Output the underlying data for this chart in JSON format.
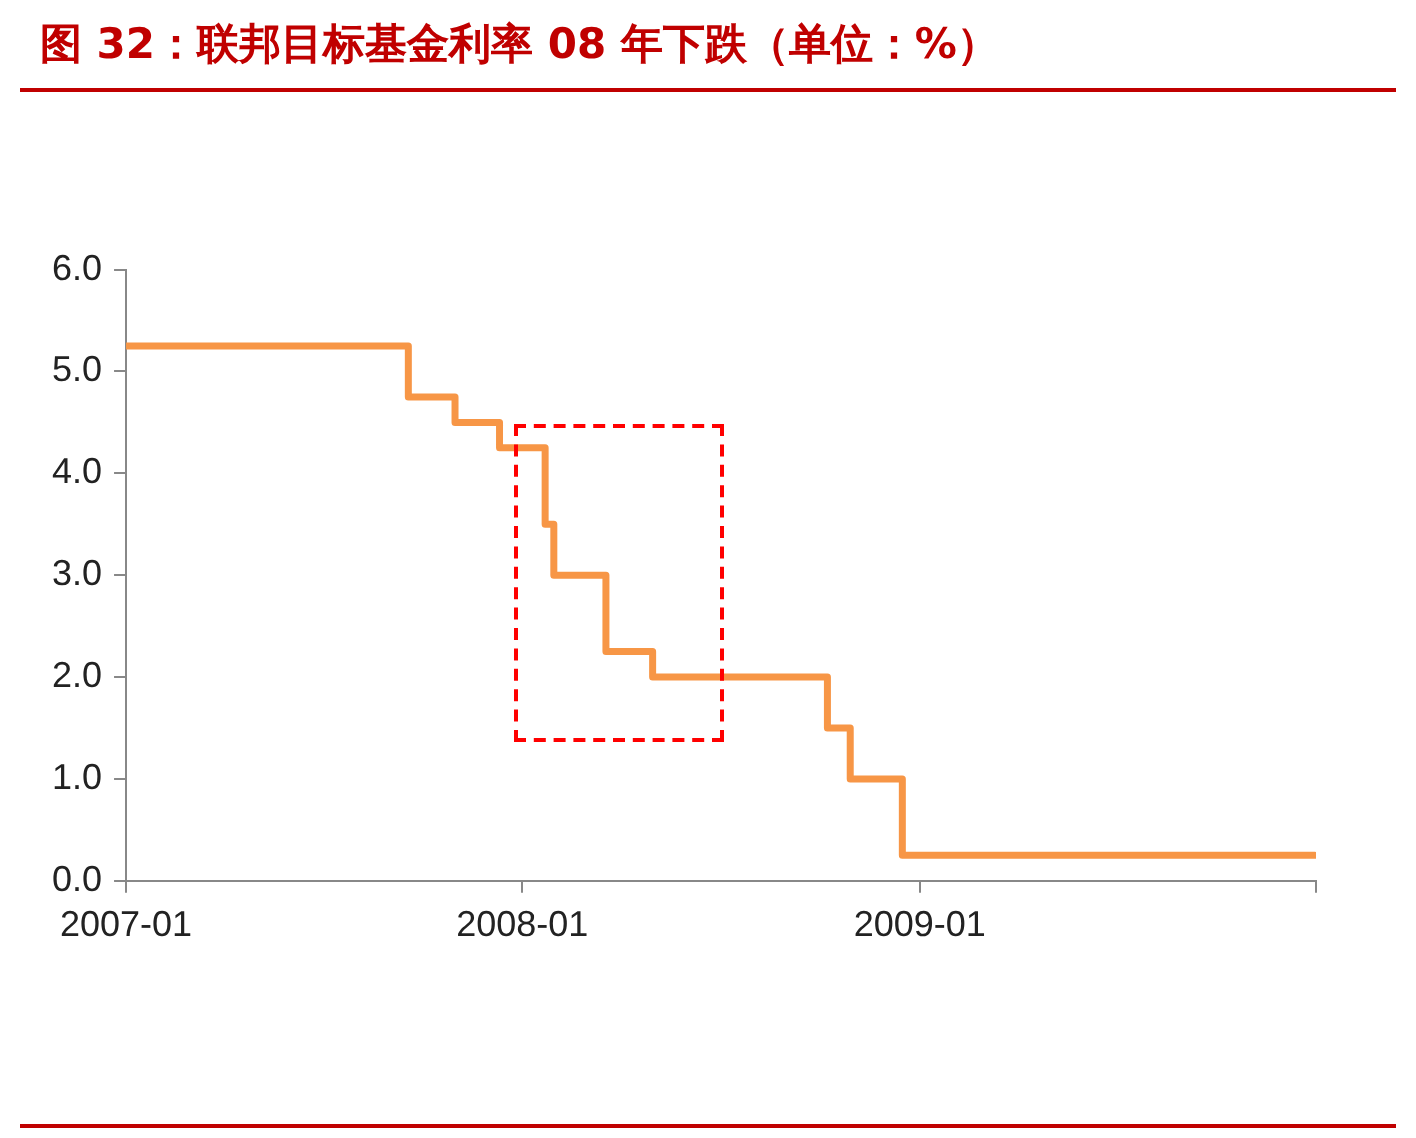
{
  "chart_data": {
    "type": "step",
    "title": "图 32：联邦目标基金利率 08 年下跌（单位：%）",
    "x": [
      "2007-01-01",
      "2007-09-18",
      "2007-10-31",
      "2007-12-11",
      "2008-01-22",
      "2008-01-30",
      "2008-03-18",
      "2008-04-30",
      "2008-10-08",
      "2008-10-29",
      "2008-12-16",
      "2009-12-31"
    ],
    "series": [
      {
        "color": "#f79646",
        "values": [
          5.25,
          4.75,
          4.5,
          4.25,
          3.5,
          3.0,
          2.25,
          2.0,
          1.5,
          1.0,
          0.25,
          0.25
        ]
      }
    ],
    "xlim": [
      "2007-01",
      "2010-01"
    ],
    "xticks": [
      "2007-01",
      "2008-01",
      "2009-01",
      {
        "value": "2010-01",
        "label": null
      }
    ],
    "ylim": [
      0,
      6
    ],
    "yticks": [
      {
        "value": 0,
        "label": "0.0"
      },
      {
        "value": 1,
        "label": "1.0"
      },
      {
        "value": 2,
        "label": "2.0"
      },
      {
        "value": 3,
        "label": "3.0"
      },
      {
        "value": 4,
        "label": "4.0"
      },
      {
        "value": 5,
        "label": "5.0"
      },
      {
        "value": 6,
        "label": "6.0"
      }
    ],
    "marker": "none",
    "line_style": "solid",
    "legend": false,
    "grid": false
  }
}
